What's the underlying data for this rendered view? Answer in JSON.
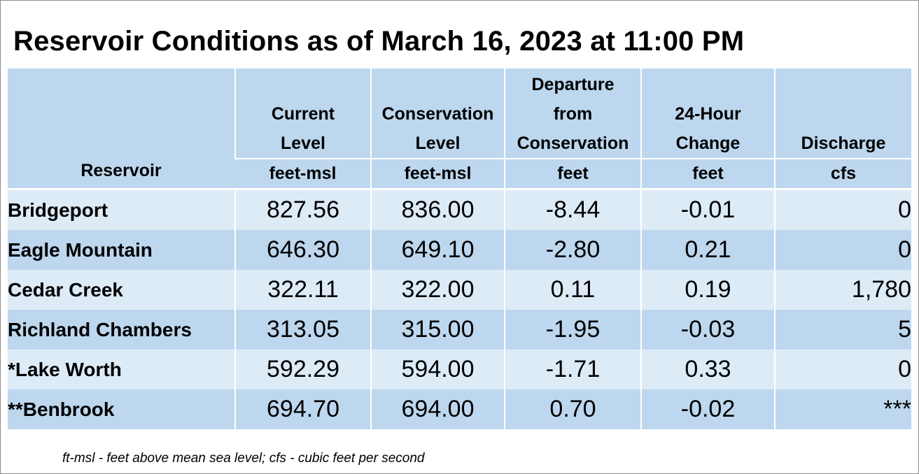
{
  "title": "Reservoir Conditions as of March 16, 2023 at 11:00 PM",
  "columns": [
    {
      "label": "Reservoir",
      "unit": ""
    },
    {
      "label": "Current Level",
      "unit": "feet-msl"
    },
    {
      "label": "Conservation Level",
      "unit": "feet-msl"
    },
    {
      "label": "Departure from Conservation",
      "unit": "feet"
    },
    {
      "label": "24-Hour Change",
      "unit": "feet"
    },
    {
      "label": "Discharge",
      "unit": "cfs"
    }
  ],
  "rows": [
    {
      "reservoir": "Bridgeport",
      "current": "827.56",
      "conservation": "836.00",
      "departure": "-8.44",
      "change": "-0.01",
      "discharge": "0"
    },
    {
      "reservoir": "Eagle Mountain",
      "current": "646.30",
      "conservation": "649.10",
      "departure": "-2.80",
      "change": "0.21",
      "discharge": "0"
    },
    {
      "reservoir": "Cedar Creek",
      "current": "322.11",
      "conservation": "322.00",
      "departure": "0.11",
      "change": "0.19",
      "discharge": "1,780"
    },
    {
      "reservoir": "Richland Chambers",
      "current": "313.05",
      "conservation": "315.00",
      "departure": "-1.95",
      "change": "-0.03",
      "discharge": "5"
    },
    {
      "reservoir": "*Lake Worth",
      "current": "592.29",
      "conservation": "594.00",
      "departure": "-1.71",
      "change": "0.33",
      "discharge": "0"
    },
    {
      "reservoir": "**Benbrook",
      "current": "694.70",
      "conservation": "694.00",
      "departure": "0.70",
      "change": "-0.02",
      "discharge": "***"
    }
  ],
  "footnote": "ft-msl - feet above mean sea level; cfs - cubic feet per second",
  "colors": {
    "header_bg": "#bdd7ee",
    "row_light": "#ddebf7",
    "row_dark": "#bdd7ee"
  }
}
